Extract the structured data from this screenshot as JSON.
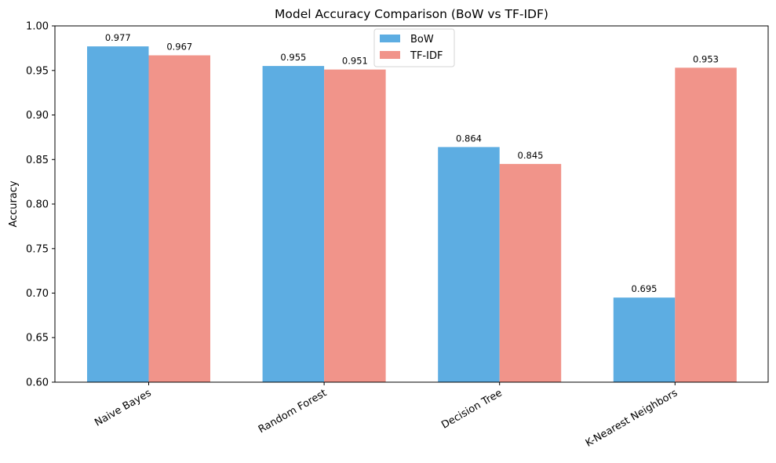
{
  "chart_data": {
    "type": "bar",
    "title": "Model Accuracy Comparison (BoW vs TF-IDF)",
    "xlabel": "",
    "ylabel": "Accuracy",
    "categories": [
      "Naive Bayes",
      "Random Forest",
      "Decision Tree",
      "K-Nearest Neighbors"
    ],
    "series": [
      {
        "name": "BoW",
        "values": [
          0.977,
          0.955,
          0.864,
          0.695
        ],
        "color": "#5dade2"
      },
      {
        "name": "TF-IDF",
        "values": [
          0.967,
          0.951,
          0.845,
          0.953
        ],
        "color": "#f1948a"
      }
    ],
    "data_labels": [
      [
        "0.977",
        "0.955",
        "0.864",
        "0.695"
      ],
      [
        "0.967",
        "0.951",
        "0.845",
        "0.953"
      ]
    ],
    "ylim": [
      0.6,
      1.0
    ],
    "yticks": [
      "0.60",
      "0.65",
      "0.70",
      "0.75",
      "0.80",
      "0.85",
      "0.90",
      "0.95",
      "1.00"
    ],
    "grid": false,
    "legend_position": "top-center"
  }
}
